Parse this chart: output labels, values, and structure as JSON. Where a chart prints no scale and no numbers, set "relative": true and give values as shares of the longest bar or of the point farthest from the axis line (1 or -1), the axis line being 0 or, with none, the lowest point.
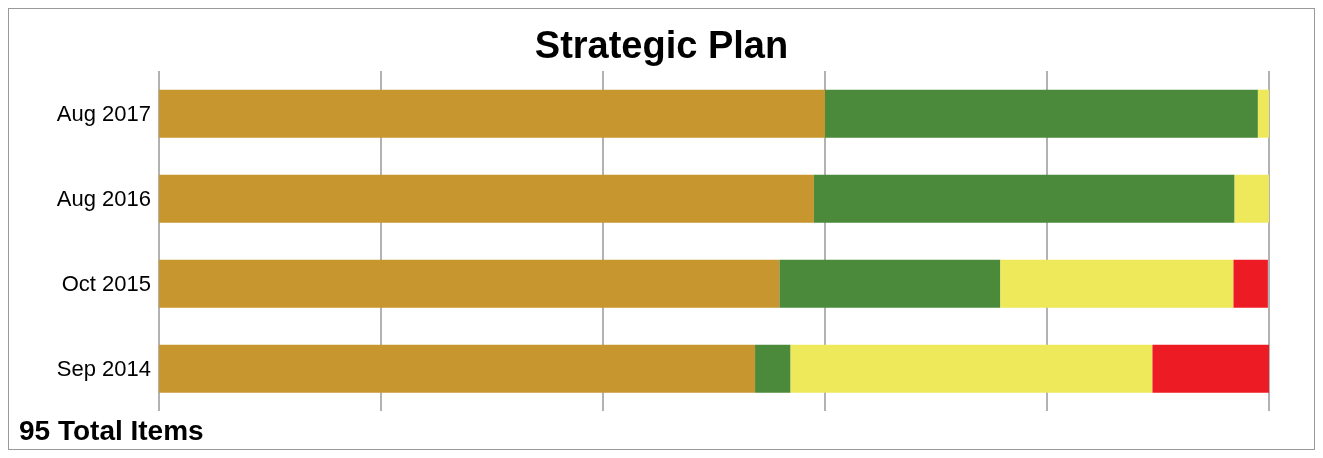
{
  "chart_data": {
    "type": "bar",
    "title": "Strategic Plan",
    "orientation": "horizontal",
    "stacked": true,
    "relative": true,
    "grid": "x",
    "categories": [
      "Aug 2017",
      "Aug 2016",
      "Oct 2015",
      "Sep 2014"
    ],
    "series": [
      {
        "color": "#c8962e",
        "values": [
          0.6,
          0.59,
          0.559,
          0.537
        ]
      },
      {
        "color": "#4a8a3a",
        "values": [
          0.39,
          0.379,
          0.199,
          0.032
        ]
      },
      {
        "color": "#ede95a",
        "values": [
          0.01,
          0.031,
          0.21,
          0.326
        ]
      },
      {
        "color": "#ed1c24",
        "values": [
          0,
          0,
          0.031,
          0.105
        ]
      }
    ],
    "annotations": [
      "95 Total Items"
    ]
  }
}
